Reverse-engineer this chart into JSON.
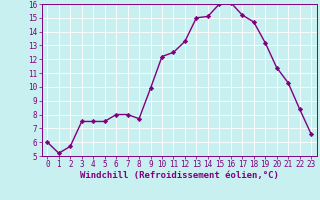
{
  "x": [
    0,
    1,
    2,
    3,
    4,
    5,
    6,
    7,
    8,
    9,
    10,
    11,
    12,
    13,
    14,
    15,
    16,
    17,
    18,
    19,
    20,
    21,
    22,
    23
  ],
  "y": [
    6.0,
    5.2,
    5.7,
    7.5,
    7.5,
    7.5,
    8.0,
    8.0,
    7.7,
    9.9,
    12.2,
    12.5,
    13.3,
    15.0,
    15.1,
    16.0,
    16.1,
    15.2,
    14.7,
    13.2,
    11.4,
    10.3,
    8.4,
    6.6
  ],
  "line_color": "#800080",
  "marker": "D",
  "markersize": 2.2,
  "linewidth": 1.0,
  "xlabel": "Windchill (Refroidissement éolien,°C)",
  "xlabel_fontsize": 6.5,
  "bg_color": "#c8f0f0",
  "grid_color": "#ffffff",
  "tick_label_color": "#800080",
  "axis_label_color": "#800080",
  "ylim": [
    5,
    16
  ],
  "xlim_min": -0.5,
  "xlim_max": 23.5,
  "yticks": [
    5,
    6,
    7,
    8,
    9,
    10,
    11,
    12,
    13,
    14,
    15,
    16
  ],
  "xticks": [
    0,
    1,
    2,
    3,
    4,
    5,
    6,
    7,
    8,
    9,
    10,
    11,
    12,
    13,
    14,
    15,
    16,
    17,
    18,
    19,
    20,
    21,
    22,
    23
  ],
  "tick_fontsize": 5.5,
  "spine_color": "#800080"
}
